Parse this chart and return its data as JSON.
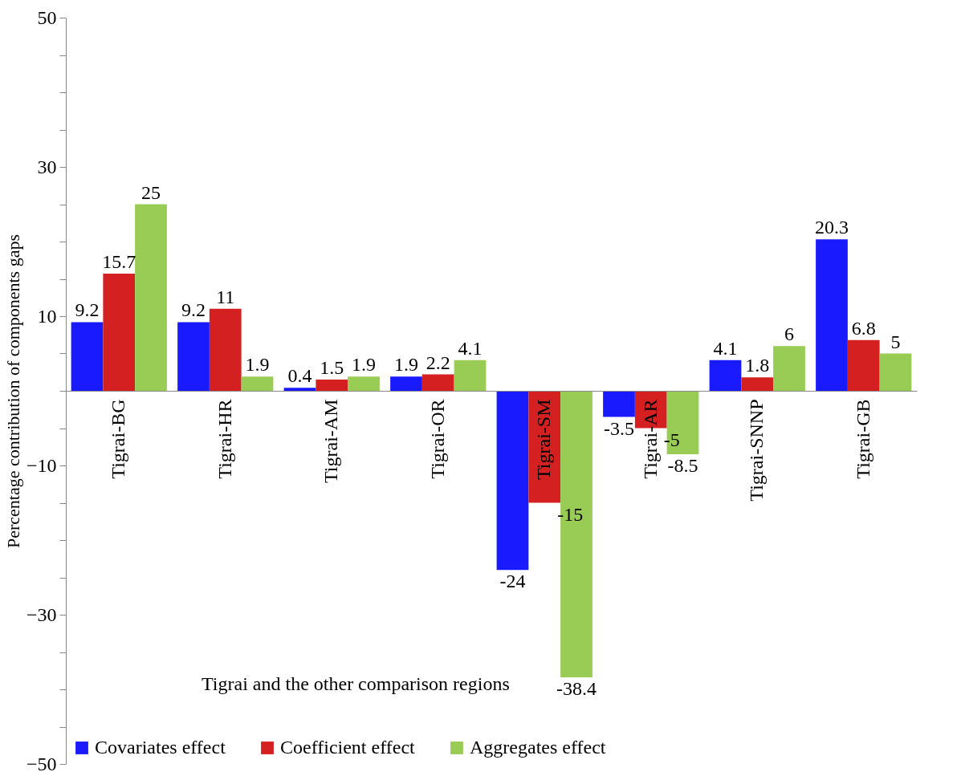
{
  "chart_data": {
    "type": "bar",
    "xlabel": "Tigrai and the other comparison regions",
    "ylabel": "Percentage contribution of components gaps",
    "categories": [
      "Tigrai-BG",
      "Tigrai-HR",
      "Tigrai-AM",
      "Tigrai-OR",
      "Tigrai-SM",
      "Tigrai-AR",
      "Tigrai-SNNP",
      "Tigrai-GB"
    ],
    "series": [
      {
        "name": "Covariates effect",
        "color": "#1a1aff",
        "values": [
          9.2,
          9.2,
          0.4,
          1.9,
          -24,
          -3.5,
          4.1,
          20.3
        ]
      },
      {
        "name": "Coefficient effect",
        "color": "#d42020",
        "values": [
          15.7,
          11,
          1.5,
          2.2,
          -15,
          -5,
          1.8,
          6.8
        ]
      },
      {
        "name": "Aggregates effect",
        "color": "#99cc55",
        "values": [
          25,
          1.9,
          1.9,
          4.1,
          -38.4,
          -8.5,
          6,
          5
        ]
      }
    ],
    "ylim": [
      -50,
      50
    ],
    "yticks": [
      -50,
      {
        "value": -45,
        "label": null
      },
      {
        "value": -40,
        "label": null
      },
      {
        "value": -35,
        "label": null
      },
      -30,
      {
        "value": -25,
        "label": null
      },
      {
        "value": -20,
        "label": null
      },
      {
        "value": -15,
        "label": null
      },
      -10,
      {
        "value": -5,
        "label": null
      },
      {
        "value": 0,
        "label": null
      },
      {
        "value": 5,
        "label": null
      },
      10,
      {
        "value": 15,
        "label": null
      },
      {
        "value": 20,
        "label": null
      },
      {
        "value": 25,
        "label": null
      },
      30,
      {
        "value": 35,
        "label": null
      },
      {
        "value": 40,
        "label": null
      },
      {
        "value": 45,
        "label": null
      },
      50
    ],
    "data_labels": true,
    "grid": false,
    "legend": "bottom"
  }
}
